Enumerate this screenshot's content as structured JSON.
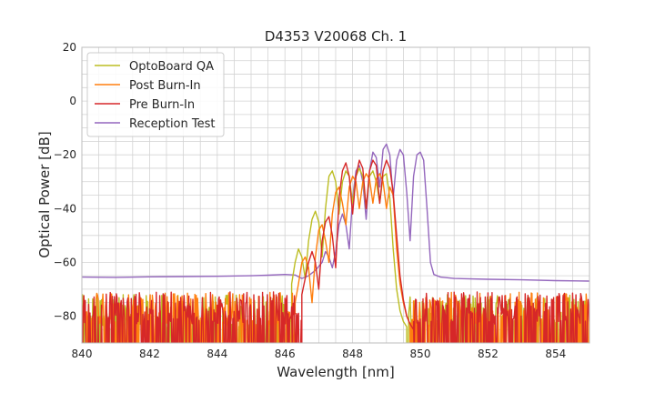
{
  "chart_data": {
    "type": "line",
    "title": "D4353 V20068 Ch. 1",
    "xlabel": "Wavelength [nm]",
    "ylabel": "Optical Power [dB]",
    "xlim": [
      840,
      855
    ],
    "ylim": [
      -90,
      20
    ],
    "xticks": [
      840,
      842,
      844,
      846,
      848,
      850,
      852,
      854
    ],
    "yticks": [
      20,
      0,
      -20,
      -40,
      -60,
      -80
    ],
    "ytick_labels": [
      "20",
      "0",
      "−20",
      "−40",
      "−60",
      "−80"
    ],
    "grid": true,
    "legend_position": "top-left",
    "series": [
      {
        "name": "OptoBoard QA",
        "color": "#bcbd22",
        "noise_floor": [
          -93,
          -72
        ],
        "noise_left_end": 846.2,
        "noise_right_start": 849.6,
        "points": [
          [
            846.2,
            -68
          ],
          [
            846.3,
            -60
          ],
          [
            846.4,
            -55
          ],
          [
            846.5,
            -58
          ],
          [
            846.6,
            -66
          ],
          [
            846.7,
            -52
          ],
          [
            846.8,
            -44
          ],
          [
            846.9,
            -41
          ],
          [
            847.0,
            -45
          ],
          [
            847.1,
            -58
          ],
          [
            847.2,
            -40
          ],
          [
            847.3,
            -28
          ],
          [
            847.4,
            -26
          ],
          [
            847.5,
            -30
          ],
          [
            847.6,
            -42
          ],
          [
            847.7,
            -30
          ],
          [
            847.8,
            -26
          ],
          [
            847.9,
            -28
          ],
          [
            848.0,
            -38
          ],
          [
            848.1,
            -28
          ],
          [
            848.2,
            -25
          ],
          [
            848.3,
            -28
          ],
          [
            848.4,
            -40
          ],
          [
            848.5,
            -28
          ],
          [
            848.6,
            -26
          ],
          [
            848.7,
            -30
          ],
          [
            848.8,
            -38
          ],
          [
            848.9,
            -28
          ],
          [
            849.0,
            -27
          ],
          [
            849.1,
            -36
          ],
          [
            849.2,
            -55
          ],
          [
            849.3,
            -70
          ],
          [
            849.4,
            -78
          ],
          [
            849.5,
            -82
          ],
          [
            849.6,
            -84
          ]
        ]
      },
      {
        "name": "Post Burn-In",
        "color": "#ff7f0e",
        "noise_floor": [
          -92,
          -71
        ],
        "noise_left_end": 846.3,
        "noise_right_start": 849.7,
        "points": [
          [
            846.3,
            -75
          ],
          [
            846.4,
            -68
          ],
          [
            846.5,
            -60
          ],
          [
            846.6,
            -58
          ],
          [
            846.7,
            -62
          ],
          [
            846.8,
            -75
          ],
          [
            846.9,
            -58
          ],
          [
            847.0,
            -48
          ],
          [
            847.1,
            -46
          ],
          [
            847.2,
            -52
          ],
          [
            847.3,
            -60
          ],
          [
            847.4,
            -42
          ],
          [
            847.5,
            -34
          ],
          [
            847.6,
            -32
          ],
          [
            847.7,
            -38
          ],
          [
            847.8,
            -46
          ],
          [
            847.9,
            -32
          ],
          [
            848.0,
            -28
          ],
          [
            848.1,
            -30
          ],
          [
            848.2,
            -40
          ],
          [
            848.3,
            -30
          ],
          [
            848.4,
            -27
          ],
          [
            848.5,
            -29
          ],
          [
            848.6,
            -38
          ],
          [
            848.7,
            -29
          ],
          [
            848.8,
            -27
          ],
          [
            848.9,
            -30
          ],
          [
            849.0,
            -40
          ],
          [
            849.1,
            -32
          ],
          [
            849.2,
            -35
          ],
          [
            849.3,
            -55
          ],
          [
            849.4,
            -68
          ],
          [
            849.5,
            -75
          ],
          [
            849.6,
            -80
          ],
          [
            849.7,
            -83
          ]
        ]
      },
      {
        "name": "Pre Burn-In",
        "color": "#d62728",
        "noise_floor": [
          -91,
          -71
        ],
        "noise_left_end": 846.5,
        "noise_right_start": 849.8,
        "points": [
          [
            846.5,
            -72
          ],
          [
            846.6,
            -66
          ],
          [
            846.7,
            -60
          ],
          [
            846.8,
            -56
          ],
          [
            846.9,
            -60
          ],
          [
            847.0,
            -70
          ],
          [
            847.1,
            -52
          ],
          [
            847.2,
            -45
          ],
          [
            847.3,
            -43
          ],
          [
            847.4,
            -50
          ],
          [
            847.5,
            -62
          ],
          [
            847.6,
            -36
          ],
          [
            847.7,
            -26
          ],
          [
            847.8,
            -23
          ],
          [
            847.9,
            -28
          ],
          [
            848.0,
            -42
          ],
          [
            848.1,
            -28
          ],
          [
            848.2,
            -22
          ],
          [
            848.3,
            -25
          ],
          [
            848.4,
            -40
          ],
          [
            848.5,
            -26
          ],
          [
            848.6,
            -22
          ],
          [
            848.7,
            -24
          ],
          [
            848.8,
            -38
          ],
          [
            848.9,
            -26
          ],
          [
            849.0,
            -22
          ],
          [
            849.1,
            -25
          ],
          [
            849.2,
            -34
          ],
          [
            849.3,
            -50
          ],
          [
            849.4,
            -65
          ],
          [
            849.5,
            -74
          ],
          [
            849.6,
            -80
          ],
          [
            849.7,
            -83
          ],
          [
            849.8,
            -85
          ]
        ]
      },
      {
        "name": "Reception Test",
        "color": "#9467bd",
        "points": [
          [
            840.0,
            -65.5
          ],
          [
            841.0,
            -65.6
          ],
          [
            842.0,
            -65.4
          ],
          [
            843.0,
            -65.3
          ],
          [
            844.0,
            -65.2
          ],
          [
            845.0,
            -65.0
          ],
          [
            845.5,
            -64.8
          ],
          [
            846.0,
            -64.5
          ],
          [
            846.3,
            -64.7
          ],
          [
            846.5,
            -66
          ],
          [
            846.7,
            -65
          ],
          [
            846.9,
            -63
          ],
          [
            847.1,
            -60
          ],
          [
            847.2,
            -56
          ],
          [
            847.3,
            -58
          ],
          [
            847.4,
            -62
          ],
          [
            847.5,
            -56
          ],
          [
            847.6,
            -46
          ],
          [
            847.7,
            -42
          ],
          [
            847.8,
            -46
          ],
          [
            847.9,
            -55
          ],
          [
            848.0,
            -36
          ],
          [
            848.1,
            -26
          ],
          [
            848.2,
            -24
          ],
          [
            848.3,
            -30
          ],
          [
            848.4,
            -44
          ],
          [
            848.5,
            -26
          ],
          [
            848.6,
            -19
          ],
          [
            848.7,
            -21
          ],
          [
            848.8,
            -32
          ],
          [
            848.9,
            -18
          ],
          [
            849.0,
            -16
          ],
          [
            849.1,
            -20
          ],
          [
            849.2,
            -36
          ],
          [
            849.3,
            -22
          ],
          [
            849.4,
            -18
          ],
          [
            849.5,
            -20
          ],
          [
            849.6,
            -34
          ],
          [
            849.7,
            -52
          ],
          [
            849.8,
            -28
          ],
          [
            849.9,
            -20
          ],
          [
            850.0,
            -19
          ],
          [
            850.1,
            -22
          ],
          [
            850.2,
            -40
          ],
          [
            850.3,
            -60
          ],
          [
            850.4,
            -64.5
          ],
          [
            850.6,
            -65.5
          ],
          [
            851.0,
            -66.0
          ],
          [
            852.0,
            -66.3
          ],
          [
            853.0,
            -66.5
          ],
          [
            854.0,
            -66.8
          ],
          [
            855.0,
            -67.0
          ]
        ]
      }
    ]
  }
}
